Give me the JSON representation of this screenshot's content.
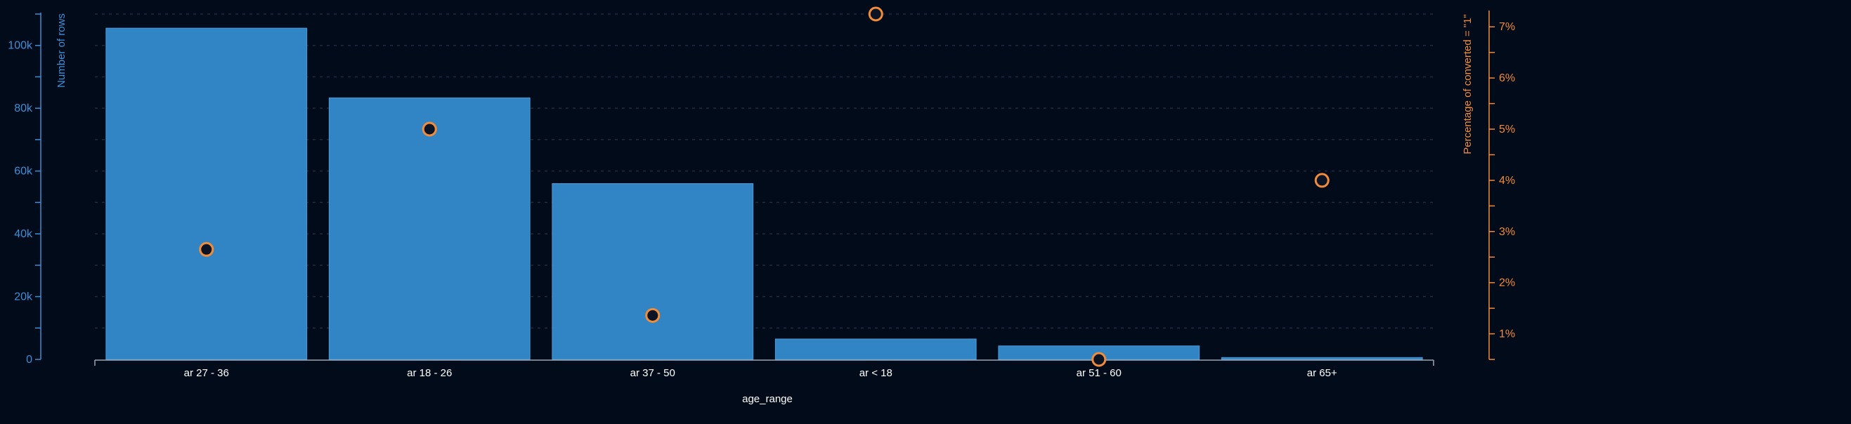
{
  "chart_data": {
    "type": "bar",
    "xlabel": "age_range",
    "ylabel": "Number of rows",
    "y2label": "Percentage of converted = \"1\"",
    "categories": [
      "ar 27 - 36",
      "ar 18 - 26",
      "ar 37 - 50",
      "ar < 18",
      "ar 51 - 60",
      "ar 65+"
    ],
    "series": [
      {
        "name": "Number of rows",
        "axis": "left",
        "mark": "bar",
        "values": [
          105500,
          83300,
          56000,
          6500,
          4300,
          600
        ]
      },
      {
        "name": "Percentage of converted = \"1\"",
        "axis": "right",
        "mark": "point",
        "values": [
          2.65,
          5.0,
          1.36,
          7.25,
          0.5,
          4.0
        ]
      }
    ],
    "ylim": [
      0,
      110000
    ],
    "y2lim": [
      0.5,
      7.25
    ],
    "yticks": [
      0,
      20000,
      40000,
      60000,
      80000,
      100000
    ],
    "ytick_labels": [
      "0",
      "20k",
      "40k",
      "60k",
      "80k",
      "100k"
    ],
    "y2ticks": [
      1,
      2,
      3,
      4,
      5,
      6,
      7
    ],
    "y2tick_labels": [
      "1%",
      "2%",
      "3%",
      "4%",
      "5%",
      "6%",
      "7%"
    ],
    "grid": true,
    "legend": "none",
    "colors": {
      "background": "#020b1a",
      "bar_fill": "#3185c5",
      "bar_stroke": "#4a9ad8",
      "left_axis": "#3d8fd6",
      "right_axis": "#f28c38",
      "point_fill": "#0b1424",
      "point_stroke": "#f28c38",
      "grid": "#1e2c42",
      "x_axis": "#9aa4b2",
      "x_text": "#ffffff"
    }
  }
}
